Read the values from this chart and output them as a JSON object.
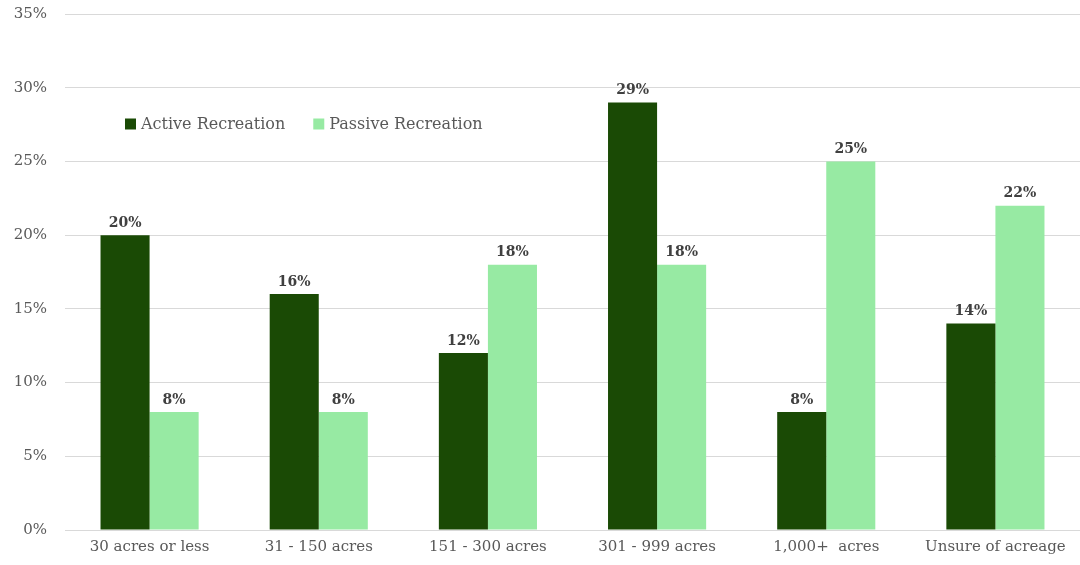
{
  "chart_data": {
    "type": "bar",
    "categories": [
      "30 acres or less",
      "31 - 150 acres",
      "151 - 300 acres",
      "301 - 999 acres",
      "1,000+  acres",
      "Unsure of acreage"
    ],
    "series": [
      {
        "name": "Active Recreation",
        "color": "#1a4a05",
        "values": [
          20,
          16,
          12,
          29,
          8,
          14
        ],
        "value_labels": [
          "20%",
          "16%",
          "12%",
          "29%",
          "8%",
          "14%"
        ]
      },
      {
        "name": "Passive Recreation",
        "color": "#97eaa3",
        "values": [
          8,
          8,
          18,
          18,
          25,
          22
        ],
        "value_labels": [
          "8%",
          "8%",
          "18%",
          "18%",
          "25%",
          "22%"
        ]
      }
    ],
    "ylim": [
      0,
      35
    ],
    "yticks": [
      {
        "value": 0,
        "label": "0%"
      },
      {
        "value": 5,
        "label": "5%"
      },
      {
        "value": 10,
        "label": "10%"
      },
      {
        "value": 15,
        "label": "15%"
      },
      {
        "value": 20,
        "label": "20%"
      },
      {
        "value": 25,
        "label": "25%"
      },
      {
        "value": 30,
        "label": "30%"
      },
      {
        "value": 35,
        "label": "35%"
      }
    ],
    "grid": "y",
    "legend": "top left"
  }
}
